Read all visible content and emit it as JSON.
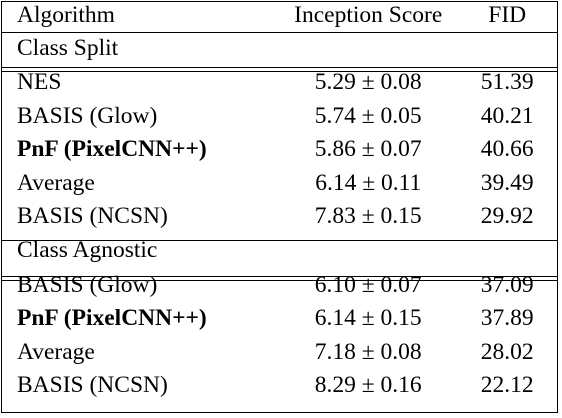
{
  "header": {
    "algorithm": "Algorithm",
    "inception_score": "Inception Score",
    "fid": "FID"
  },
  "sections": [
    {
      "title": "Class Split",
      "rows": [
        {
          "algorithm": "NES",
          "inception_score": "5.29 ± 0.08",
          "fid": "51.39",
          "bold": false
        },
        {
          "algorithm": "BASIS (Glow)",
          "inception_score": "5.74 ± 0.05",
          "fid": "40.21",
          "bold": false
        },
        {
          "algorithm": "PnF (PixelCNN++)",
          "inception_score": "5.86 ± 0.07",
          "fid": "40.66",
          "bold": true
        },
        {
          "algorithm": "Average",
          "inception_score": "6.14 ± 0.11",
          "fid": "39.49",
          "bold": false
        },
        {
          "algorithm": "BASIS (NCSN)",
          "inception_score": "7.83 ± 0.15",
          "fid": "29.92",
          "bold": false
        }
      ]
    },
    {
      "title": "Class Agnostic",
      "rows": [
        {
          "algorithm": "BASIS (Glow)",
          "inception_score": "6.10 ± 0.07",
          "fid": "37.09",
          "bold": false
        },
        {
          "algorithm": "PnF (PixelCNN++)",
          "inception_score": "6.14 ± 0.15",
          "fid": "37.89",
          "bold": true
        },
        {
          "algorithm": "Average",
          "inception_score": "7.18 ± 0.08",
          "fid": "28.02",
          "bold": false
        },
        {
          "algorithm": "BASIS (NCSN)",
          "inception_score": "8.29 ± 0.16",
          "fid": "22.12",
          "bold": false
        }
      ]
    }
  ]
}
